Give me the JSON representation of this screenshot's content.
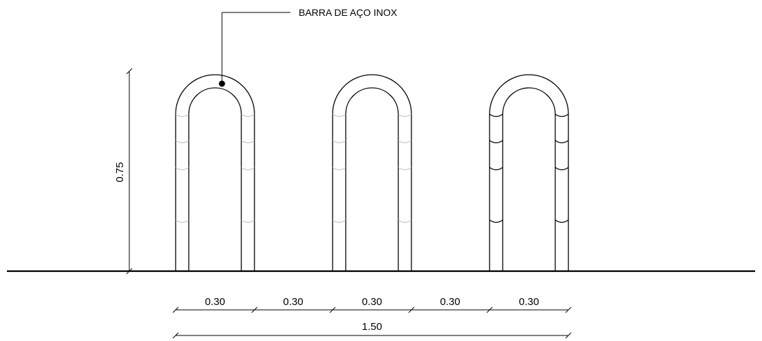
{
  "callout": {
    "label": "BARRA DE AÇO INOX"
  },
  "height_dimension": {
    "label": "0.75"
  },
  "spacing_dimensions": [
    "0.30",
    "0.30",
    "0.30",
    "0.30",
    "0.30"
  ],
  "total_dimension": {
    "label": "1.50"
  }
}
